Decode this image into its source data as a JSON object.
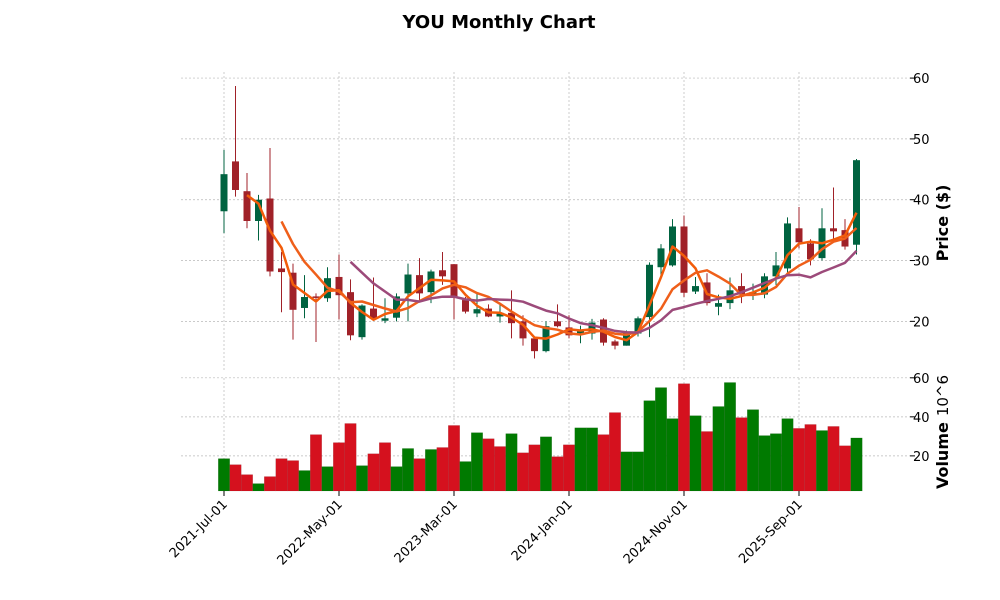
{
  "chart_data": {
    "type": "candlestick",
    "title": "YOU Monthly Chart",
    "ylabel": "Price ($)",
    "volume_label": "Volume",
    "volume_exponent": "10^6",
    "price_ylim": [
      12,
      61
    ],
    "volume_ylim": [
      2,
      64
    ],
    "price_yticks": [
      20,
      30,
      40,
      50,
      60
    ],
    "volume_yticks": [
      20,
      40,
      60
    ],
    "xtick_labels": [
      {
        "index": 0,
        "label": "2021-Jul-01"
      },
      {
        "index": 10,
        "label": "2022-May-01"
      },
      {
        "index": 20,
        "label": "2023-Mar-01"
      },
      {
        "index": 30,
        "label": "2024-Jan-01"
      },
      {
        "index": 40,
        "label": "2024-Nov-01"
      },
      {
        "index": 50,
        "label": "2025-Sep-01"
      }
    ],
    "grid": true,
    "moving_averages": [
      3,
      6,
      12
    ],
    "colors": {
      "up": "#006340",
      "down": "#a02128",
      "vol_up": "#007a00",
      "vol_down": "#d5111e",
      "ma": [
        "#f25c0a",
        "#ef5f1a",
        "#9c4a7a"
      ]
    },
    "ohlc": [
      [
        38.1,
        48.2,
        34.5,
        44.2
      ],
      [
        46.3,
        58.7,
        40.5,
        41.6
      ],
      [
        41.4,
        44.4,
        35.3,
        36.5
      ],
      [
        36.5,
        40.8,
        33.3,
        40.0
      ],
      [
        40.2,
        48.5,
        27.4,
        28.2
      ],
      [
        28.7,
        31.4,
        21.5,
        28.1
      ],
      [
        28.0,
        29.5,
        17.0,
        21.9
      ],
      [
        22.2,
        27.6,
        20.5,
        24.0
      ],
      [
        24.1,
        24.6,
        16.6,
        23.9
      ],
      [
        23.8,
        28.9,
        23.2,
        27.1
      ],
      [
        27.3,
        31.0,
        20.3,
        24.3
      ],
      [
        24.8,
        26.9,
        16.9,
        17.7
      ],
      [
        17.4,
        22.8,
        17.0,
        22.6
      ],
      [
        22.1,
        27.2,
        20.3,
        20.5
      ],
      [
        20.1,
        23.8,
        19.7,
        20.5
      ],
      [
        20.6,
        24.6,
        20.0,
        24.1
      ],
      [
        24.6,
        29.5,
        20.0,
        27.7
      ],
      [
        27.6,
        30.4,
        23.5,
        24.6
      ],
      [
        24.8,
        28.5,
        23.0,
        28.2
      ],
      [
        28.4,
        31.4,
        26.0,
        27.4
      ],
      [
        29.4,
        29.4,
        20.3,
        24.1
      ],
      [
        23.5,
        24.0,
        21.3,
        21.6
      ],
      [
        21.3,
        24.6,
        20.7,
        22.0
      ],
      [
        22.1,
        22.8,
        20.7,
        20.8
      ],
      [
        20.8,
        23.1,
        19.8,
        21.4
      ],
      [
        21.4,
        25.1,
        17.2,
        19.7
      ],
      [
        20.0,
        21.0,
        16.0,
        17.2
      ],
      [
        17.2,
        17.5,
        13.9,
        15.1
      ],
      [
        15.1,
        20.0,
        14.9,
        19.2
      ],
      [
        20.0,
        22.8,
        19.0,
        19.2
      ],
      [
        19.0,
        21.0,
        17.2,
        17.7
      ],
      [
        18.0,
        19.3,
        16.4,
        18.6
      ],
      [
        18.0,
        20.4,
        17.0,
        19.8
      ],
      [
        20.3,
        20.5,
        16.0,
        16.5
      ],
      [
        16.7,
        17.0,
        15.4,
        16.0
      ],
      [
        16.0,
        18.5,
        16.0,
        18.2
      ],
      [
        18.0,
        20.8,
        17.5,
        20.5
      ],
      [
        20.7,
        29.7,
        17.4,
        29.3
      ],
      [
        28.9,
        32.7,
        27.0,
        32.0
      ],
      [
        29.2,
        36.8,
        29.0,
        35.6
      ],
      [
        35.6,
        37.4,
        24.0,
        24.7
      ],
      [
        24.9,
        27.3,
        24.5,
        25.8
      ],
      [
        26.4,
        27.9,
        22.6,
        23.0
      ],
      [
        22.4,
        24.4,
        21.0,
        23.0
      ],
      [
        23.0,
        27.2,
        22.0,
        25.1
      ],
      [
        25.8,
        27.9,
        23.0,
        24.4
      ],
      [
        24.3,
        26.2,
        23.5,
        24.8
      ],
      [
        24.4,
        27.9,
        23.8,
        27.4
      ],
      [
        27.4,
        31.4,
        26.0,
        29.2
      ],
      [
        28.7,
        37.1,
        28.0,
        36.1
      ],
      [
        35.3,
        38.8,
        32.0,
        33.0
      ],
      [
        32.8,
        33.5,
        29.2,
        30.2
      ],
      [
        30.4,
        38.6,
        30.0,
        35.3
      ],
      [
        35.3,
        42.0,
        33.0,
        34.8
      ],
      [
        35.0,
        36.8,
        31.8,
        32.3
      ],
      [
        32.6,
        46.7,
        31.0,
        46.5
      ]
    ],
    "volume": [
      18.6,
      15.5,
      10.4,
      5.8,
      9.4,
      18.6,
      17.6,
      12.5,
      30.9,
      14.5,
      26.8,
      36.6,
      15.0,
      21.1,
      26.8,
      14.5,
      23.8,
      18.6,
      23.3,
      24.3,
      35.6,
      17.1,
      31.9,
      28.8,
      24.8,
      31.4,
      21.6,
      25.7,
      29.8,
      19.6,
      25.7,
      34.4,
      34.4,
      30.9,
      42.2,
      22.1,
      22.1,
      48.3,
      55.0,
      39.1,
      57.0,
      40.6,
      32.5,
      45.3,
      57.6,
      39.6,
      43.7,
      30.4,
      31.4,
      39.1,
      34.1,
      36.1,
      33.0,
      35.1,
      25.2,
      29.2
    ],
    "volume_up": [
      1,
      0,
      0,
      1,
      0,
      0,
      0,
      1,
      0,
      1,
      0,
      0,
      1,
      0,
      0,
      1,
      1,
      0,
      1,
      0,
      0,
      1,
      1,
      0,
      0,
      1,
      0,
      0,
      1,
      0,
      0,
      1,
      1,
      0,
      0,
      1,
      1,
      1,
      1,
      1,
      0,
      1,
      0,
      1,
      1,
      0,
      1,
      1,
      1,
      1,
      0,
      0,
      1,
      0,
      0,
      1
    ]
  }
}
